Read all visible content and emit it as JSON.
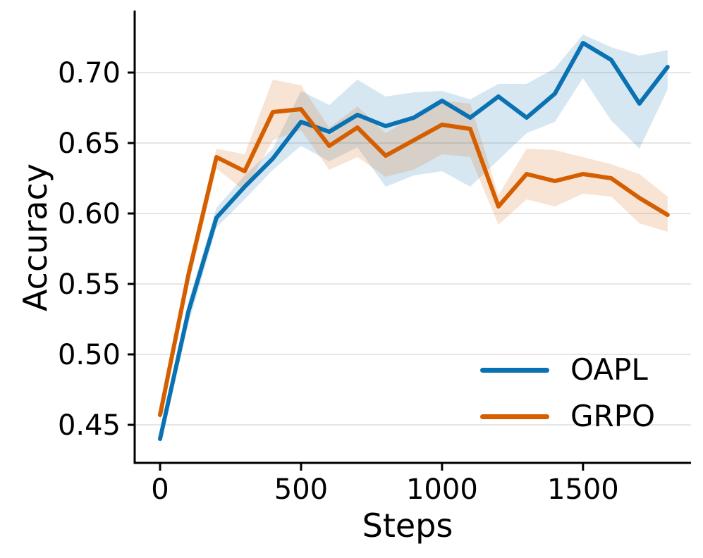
{
  "chart_data": {
    "type": "line",
    "title": "",
    "xlabel": "Steps",
    "ylabel": "Accuracy",
    "x": [
      0,
      100,
      200,
      300,
      400,
      500,
      600,
      700,
      800,
      900,
      1000,
      1100,
      1200,
      1300,
      1400,
      1500,
      1600,
      1700,
      1800
    ],
    "series": [
      {
        "name": "OAPL",
        "color": "#0a72b2",
        "values": [
          0.44,
          0.53,
          0.597,
          0.619,
          0.639,
          0.665,
          0.658,
          0.67,
          0.662,
          0.668,
          0.68,
          0.668,
          0.683,
          0.668,
          0.685,
          0.721,
          0.709,
          0.678,
          0.704
        ],
        "band_lower": [
          0.436,
          0.521,
          0.59,
          0.61,
          0.631,
          0.648,
          0.637,
          0.647,
          0.619,
          0.627,
          0.63,
          0.619,
          0.638,
          0.657,
          0.665,
          0.696,
          0.666,
          0.646,
          0.688
        ],
        "band_upper": [
          0.444,
          0.537,
          0.604,
          0.627,
          0.646,
          0.687,
          0.677,
          0.695,
          0.683,
          0.686,
          0.687,
          0.681,
          0.692,
          0.692,
          0.703,
          0.727,
          0.718,
          0.712,
          0.716
        ]
      },
      {
        "name": "GRPO",
        "color": "#d55f00",
        "values": [
          0.457,
          0.556,
          0.64,
          0.63,
          0.672,
          0.674,
          0.648,
          0.661,
          0.641,
          0.652,
          0.663,
          0.66,
          0.605,
          0.628,
          0.623,
          0.628,
          0.625,
          0.611,
          0.599
        ],
        "band_lower": [
          0.453,
          0.548,
          0.632,
          0.616,
          0.652,
          0.659,
          0.631,
          0.64,
          0.626,
          0.631,
          0.642,
          0.64,
          0.592,
          0.61,
          0.605,
          0.614,
          0.612,
          0.593,
          0.587
        ],
        "band_upper": [
          0.461,
          0.563,
          0.646,
          0.642,
          0.695,
          0.691,
          0.661,
          0.676,
          0.657,
          0.669,
          0.68,
          0.678,
          0.613,
          0.646,
          0.645,
          0.64,
          0.635,
          0.628,
          0.612
        ]
      }
    ],
    "xticks": [
      0,
      500,
      1000,
      1500
    ],
    "yticks": [
      0.45,
      0.5,
      0.55,
      0.6,
      0.65,
      0.7
    ],
    "xlim": [
      -90,
      1883
    ],
    "ylim": [
      0.423,
      0.744
    ],
    "grid": "horizontal",
    "grid_color": "#e3e3e3",
    "axis_color": "#000000",
    "band_alpha": 0.17,
    "line_width": 6,
    "legend_position": "lower right"
  }
}
